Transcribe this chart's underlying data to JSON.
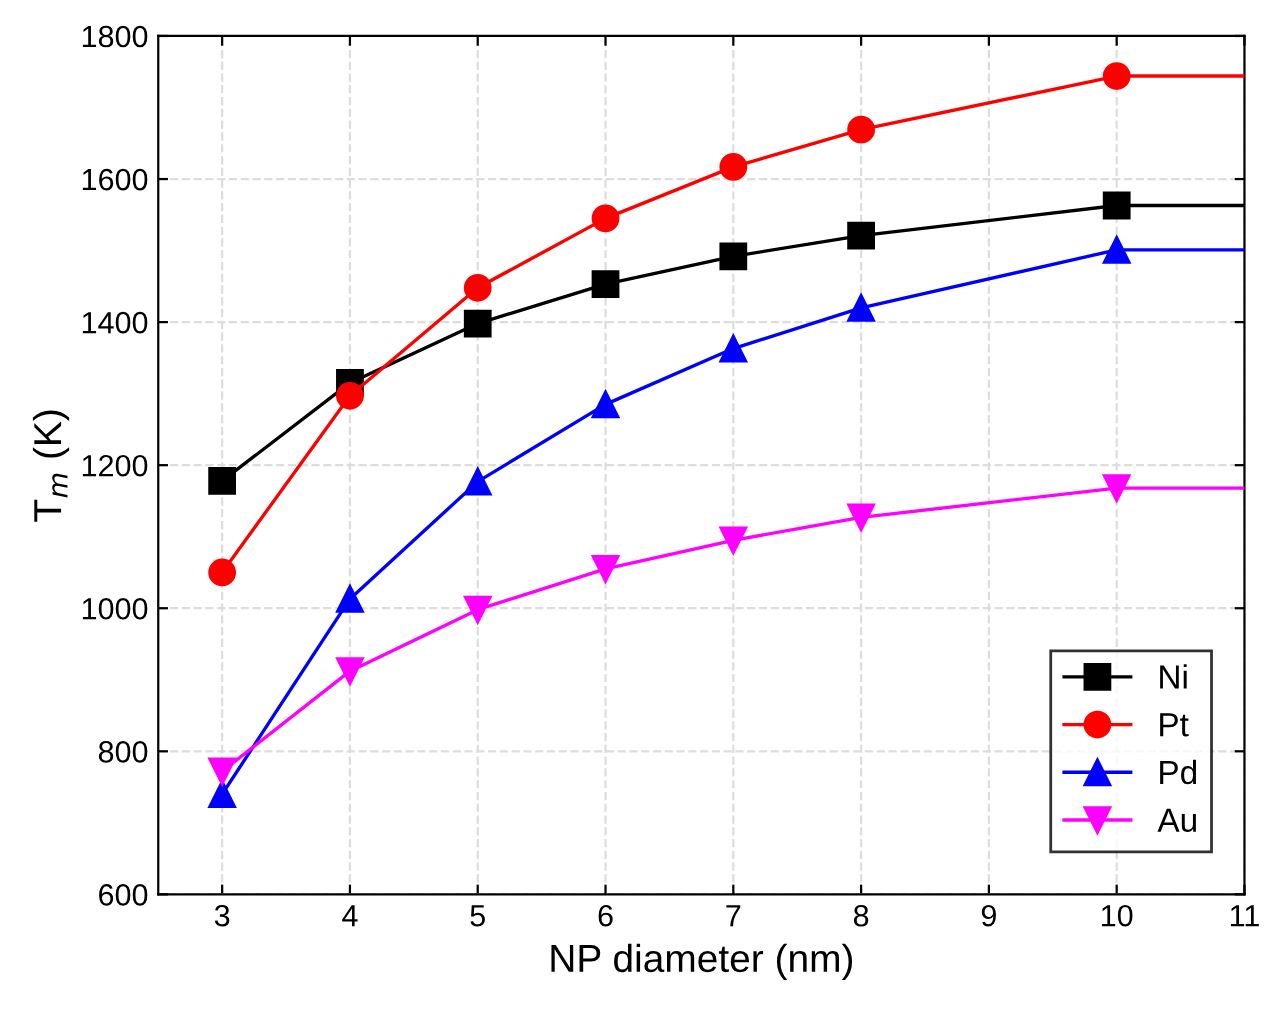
{
  "chart_data": {
    "type": "line",
    "xlabel": "NP diameter (nm)",
    "ylabel": "T$_{m}$ (K)",
    "x": [
      3,
      4,
      5,
      6,
      7,
      8,
      10,
      11
    ],
    "series": [
      {
        "name": "Ni",
        "color": "#000000",
        "marker": "square",
        "values": [
          1178,
          1315,
          1398,
          1453,
          1492,
          1521,
          1563,
          1563
        ]
      },
      {
        "name": "Pt",
        "color": "#ff0000",
        "marker": "circle",
        "values": [
          1050,
          1297,
          1448,
          1545,
          1617,
          1669,
          1744,
          1744
        ]
      },
      {
        "name": "Pd",
        "color": "#0000ff",
        "marker": "triangle",
        "values": [
          740,
          1013,
          1177,
          1285,
          1363,
          1420,
          1501,
          1501
        ]
      },
      {
        "name": "Au",
        "color": "#ff00ff",
        "marker": "triangle_down",
        "values": [
          772,
          912,
          998,
          1055,
          1095,
          1127,
          1168,
          1168
        ]
      }
    ],
    "xlim": [
      2.5,
      11
    ],
    "xticks": [
      3,
      4,
      5,
      6,
      7,
      8,
      9,
      10,
      11
    ],
    "ylim": [
      600,
      1800
    ],
    "yticks": [
      600,
      800,
      1000,
      1200,
      1400,
      1600,
      1800
    ],
    "grid": true,
    "legend": "bottom right",
    "line_style": "solid"
  }
}
